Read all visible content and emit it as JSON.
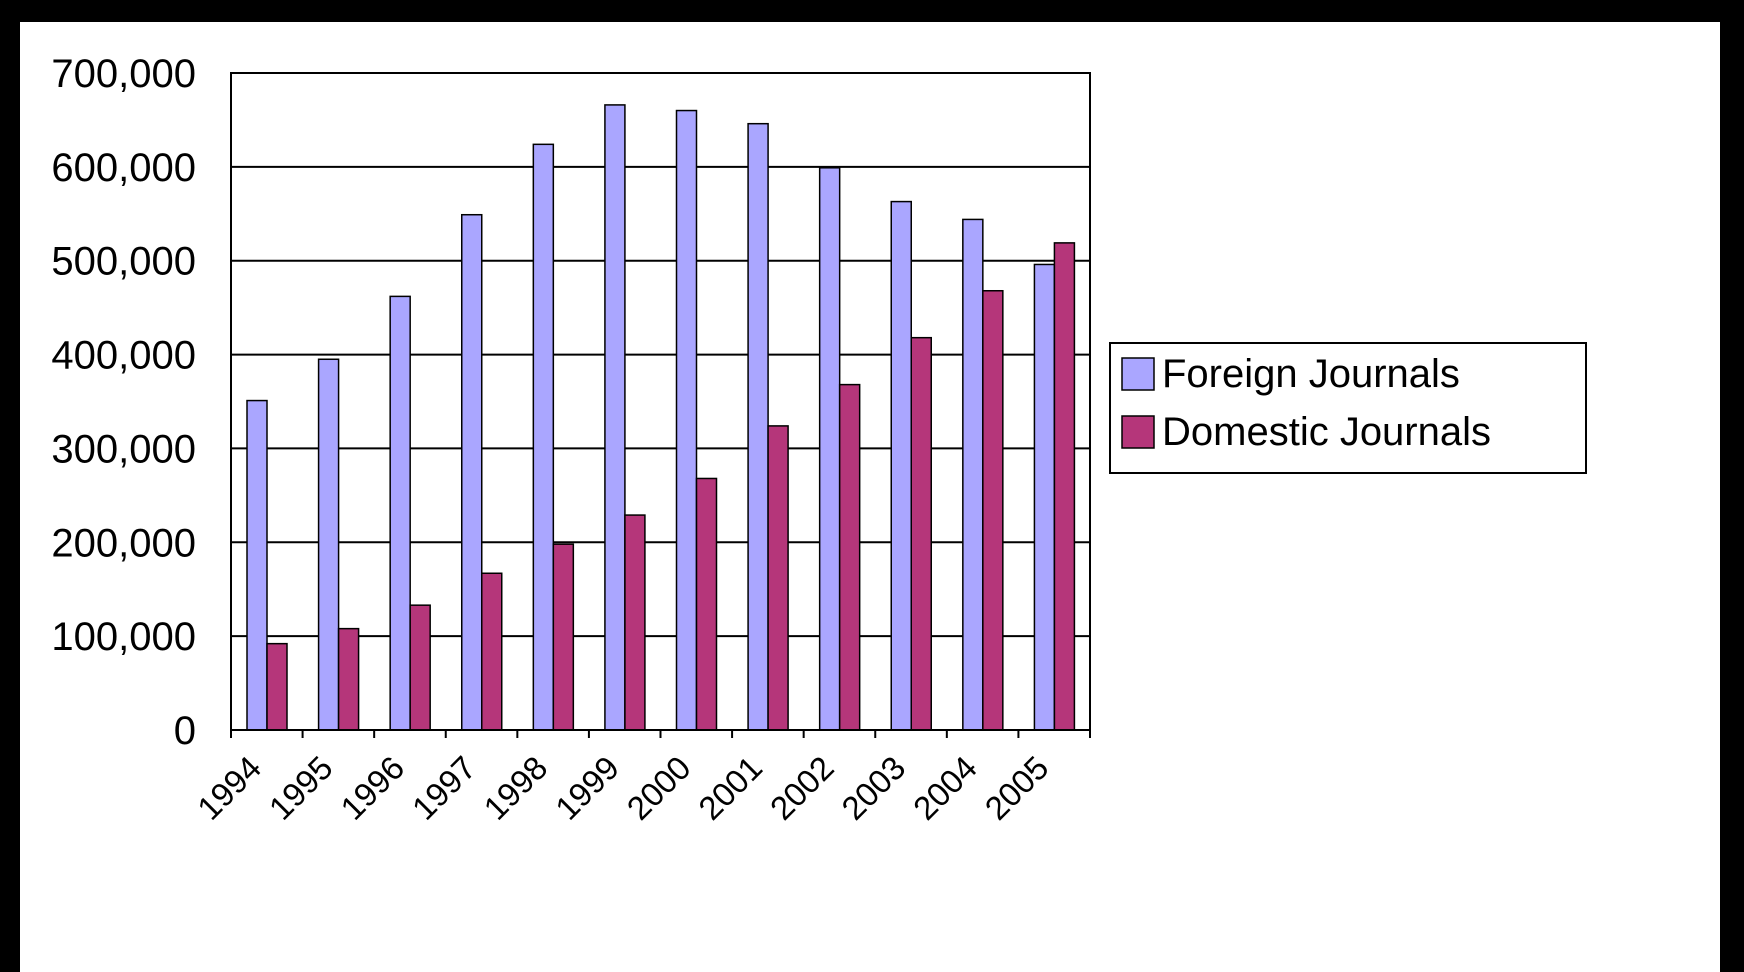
{
  "chart_data": {
    "type": "bar",
    "title": "",
    "xlabel": "",
    "ylabel": "",
    "categories": [
      "1994",
      "1995",
      "1996",
      "1997",
      "1998",
      "1999",
      "2000",
      "2001",
      "2002",
      "2003",
      "2004",
      "2005"
    ],
    "series": [
      {
        "name": "Foreign Journals",
        "color": "#aaa6ff",
        "values": [
          351000,
          395000,
          462000,
          549000,
          624000,
          666000,
          660000,
          646000,
          599000,
          563000,
          544000,
          496000
        ]
      },
      {
        "name": "Domestic Journals",
        "color": "#b5367a",
        "values": [
          92000,
          108000,
          133000,
          167000,
          198000,
          229000,
          268000,
          324000,
          368000,
          418000,
          468000,
          519000
        ]
      }
    ],
    "ylim": [
      0,
      700000
    ],
    "yticks": [
      0,
      100000,
      200000,
      300000,
      400000,
      500000,
      600000,
      700000
    ],
    "ytick_labels": [
      "0",
      "100,000",
      "200,000",
      "300,000",
      "400,000",
      "500,000",
      "600,000",
      "700,000"
    ],
    "grid": true,
    "legend_position": "right"
  }
}
